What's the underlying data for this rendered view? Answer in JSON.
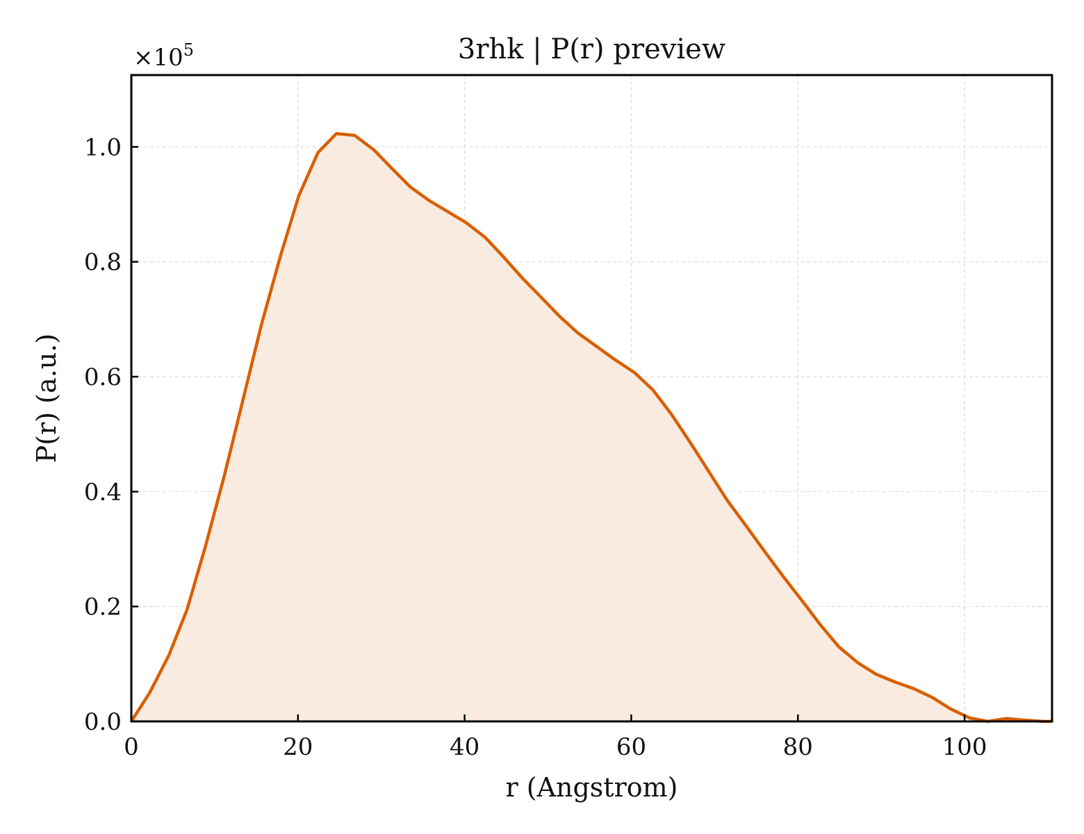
{
  "chart_data": {
    "type": "area",
    "title": "3rhk | P(r) preview",
    "xlabel": "r (Angstrom)",
    "ylabel": "P(r) (a.u.)",
    "y_multiplier_base": "×10",
    "y_multiplier_exp": "5",
    "xlim": [
      0,
      110.5
    ],
    "ylim": [
      0,
      1.125
    ],
    "x_ticks": [
      0,
      20,
      40,
      60,
      80,
      100
    ],
    "x_tick_labels": [
      "0",
      "20",
      "40",
      "60",
      "80",
      "100"
    ],
    "y_ticks": [
      0,
      0.2,
      0.4,
      0.6,
      0.8,
      1.0
    ],
    "y_tick_labels": [
      "0.0",
      "0.2",
      "0.4",
      "0.6",
      "0.8",
      "1.0"
    ],
    "grid": true,
    "colors": {
      "line": "#d95f02",
      "fill": "#f9ebe0",
      "grid": "#d9d9d9"
    },
    "series": [
      {
        "x": [
          0,
          2.2,
          4.5,
          6.7,
          8.9,
          11.2,
          13.4,
          15.6,
          17.9,
          20.1,
          22.4,
          24.6,
          26.8,
          29.1,
          31.3,
          33.5,
          35.8,
          38.0,
          40.2,
          42.5,
          44.7,
          46.9,
          49.2,
          51.4,
          53.6,
          55.9,
          58.1,
          60.4,
          62.6,
          64.8,
          67.1,
          69.3,
          71.5,
          73.8,
          76.0,
          78.2,
          80.5,
          82.7,
          84.9,
          87.2,
          89.4,
          91.6,
          93.9,
          96.1,
          98.3,
          100.6,
          102.8,
          105.0,
          107.3,
          109.5,
          110.5
        ],
        "y": [
          0.0,
          0.05,
          0.115,
          0.195,
          0.305,
          0.43,
          0.56,
          0.69,
          0.81,
          0.915,
          0.99,
          1.023,
          1.02,
          0.995,
          0.962,
          0.93,
          0.906,
          0.887,
          0.868,
          0.842,
          0.808,
          0.772,
          0.738,
          0.705,
          0.676,
          0.652,
          0.629,
          0.607,
          0.577,
          0.535,
          0.485,
          0.435,
          0.385,
          0.34,
          0.296,
          0.253,
          0.21,
          0.168,
          0.13,
          0.102,
          0.082,
          0.069,
          0.057,
          0.042,
          0.022,
          0.006,
          0.0,
          0.005,
          0.002,
          0.0,
          0.0
        ]
      }
    ]
  }
}
